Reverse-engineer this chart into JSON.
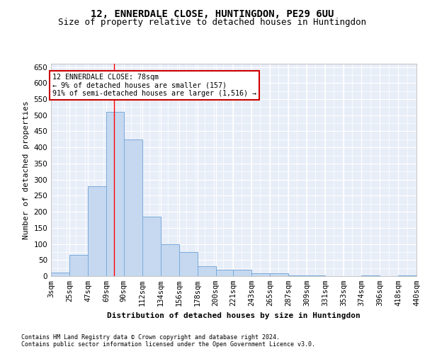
{
  "title": "12, ENNERDALE CLOSE, HUNTINGDON, PE29 6UU",
  "subtitle": "Size of property relative to detached houses in Huntingdon",
  "xlabel": "Distribution of detached houses by size in Huntingdon",
  "ylabel": "Number of detached properties",
  "footnote1": "Contains HM Land Registry data © Crown copyright and database right 2024.",
  "footnote2": "Contains public sector information licensed under the Open Government Licence v3.0.",
  "annotation_line1": "12 ENNERDALE CLOSE: 78sqm",
  "annotation_line2": "← 9% of detached houses are smaller (157)",
  "annotation_line3": "91% of semi-detached houses are larger (1,516) →",
  "bar_color": "#c5d8f0",
  "bar_edge_color": "#7aabda",
  "red_line_x": 78,
  "bins": [
    3,
    25,
    47,
    69,
    90,
    112,
    134,
    156,
    178,
    200,
    221,
    243,
    265,
    287,
    309,
    331,
    353,
    374,
    396,
    418,
    440
  ],
  "bin_labels": [
    "3sqm",
    "25sqm",
    "47sqm",
    "69sqm",
    "90sqm",
    "112sqm",
    "134sqm",
    "156sqm",
    "178sqm",
    "200sqm",
    "221sqm",
    "243sqm",
    "265sqm",
    "287sqm",
    "309sqm",
    "331sqm",
    "353sqm",
    "374sqm",
    "396sqm",
    "418sqm",
    "440sqm"
  ],
  "values": [
    10,
    65,
    280,
    510,
    425,
    185,
    100,
    75,
    30,
    20,
    20,
    8,
    8,
    3,
    3,
    0,
    0,
    3,
    0,
    3
  ],
  "ylim": [
    0,
    660
  ],
  "yticks": [
    0,
    50,
    100,
    150,
    200,
    250,
    300,
    350,
    400,
    450,
    500,
    550,
    600,
    650
  ],
  "bg_color": "#e8eef8",
  "grid_color": "#ffffff",
  "annotation_box_color": "#ffffff",
  "annotation_box_edge": "#cc0000",
  "title_fontsize": 10,
  "subtitle_fontsize": 9,
  "axis_label_fontsize": 8,
  "tick_fontsize": 7.5
}
